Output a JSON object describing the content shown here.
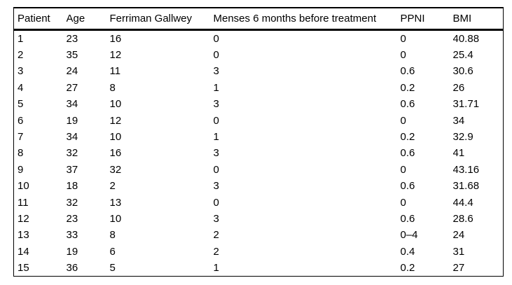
{
  "table": {
    "headers": [
      "Patient",
      "Age",
      "Ferriman Gallwey",
      "Menses 6 months before treatment",
      "PPNI",
      "BMI"
    ],
    "rows": [
      [
        "1",
        "23",
        "16",
        "0",
        "0",
        "40.88"
      ],
      [
        "2",
        "35",
        "12",
        "0",
        "0",
        "25.4"
      ],
      [
        "3",
        "24",
        "11",
        "3",
        "0.6",
        "30.6"
      ],
      [
        "4",
        "27",
        "8",
        "1",
        "0.2",
        "26"
      ],
      [
        "5",
        "34",
        "10",
        "3",
        "0.6",
        "31.71"
      ],
      [
        "6",
        "19",
        "12",
        "0",
        "0",
        "34"
      ],
      [
        "7",
        "34",
        "10",
        "1",
        "0.2",
        "32.9"
      ],
      [
        "8",
        "32",
        "16",
        "3",
        "0.6",
        "41"
      ],
      [
        "9",
        "37",
        "32",
        "0",
        "0",
        "43.16"
      ],
      [
        "10",
        "18",
        "2",
        "3",
        "0.6",
        "31.68"
      ],
      [
        "11",
        "32",
        "13",
        "0",
        "0",
        "44.4"
      ],
      [
        "12",
        "23",
        "10",
        "3",
        "0.6",
        "28.6"
      ],
      [
        "13",
        "33",
        "8",
        "2",
        "0–4",
        "24"
      ],
      [
        "14",
        "19",
        "6",
        "2",
        "0.4",
        "31"
      ],
      [
        "15",
        "36",
        "5",
        "1",
        "0.2",
        "27"
      ]
    ]
  },
  "colors": {
    "text": "#000000",
    "border": "#000000",
    "background": "#ffffff"
  }
}
